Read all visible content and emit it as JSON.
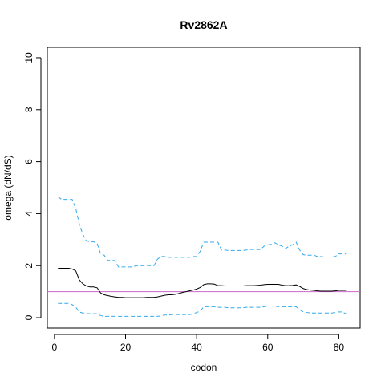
{
  "chart_data": {
    "type": "line",
    "title": "Rv2862A",
    "xlabel": "codon",
    "ylabel": "omega (dN/dS)",
    "xlim": [
      -2,
      86
    ],
    "ylim": [
      -0.4,
      10.4
    ],
    "xticks": [
      0,
      20,
      40,
      60,
      80
    ],
    "yticks": [
      0,
      2,
      4,
      6,
      8,
      10
    ],
    "reference_line": {
      "y": 1,
      "color": "#cc66cc"
    },
    "grid": false,
    "series": [
      {
        "role": "mean",
        "color": "#000000",
        "dash": "solid",
        "x": [
          1,
          2,
          3,
          4,
          5,
          6,
          7,
          8,
          9,
          10,
          11,
          12,
          13,
          14,
          15,
          16,
          17,
          18,
          19,
          20,
          21,
          22,
          23,
          24,
          25,
          26,
          27,
          28,
          29,
          30,
          31,
          32,
          33,
          34,
          35,
          36,
          37,
          38,
          39,
          40,
          41,
          42,
          43,
          44,
          45,
          46,
          47,
          48,
          49,
          50,
          51,
          52,
          53,
          54,
          55,
          56,
          57,
          58,
          59,
          60,
          61,
          62,
          63,
          64,
          65,
          66,
          67,
          68,
          69,
          70,
          71,
          72,
          73,
          74,
          75,
          76,
          77,
          78,
          79,
          80,
          81,
          82
        ],
        "values": [
          1.9,
          1.9,
          1.9,
          1.9,
          1.87,
          1.8,
          1.45,
          1.3,
          1.22,
          1.18,
          1.18,
          1.15,
          0.95,
          0.88,
          0.85,
          0.82,
          0.8,
          0.78,
          0.78,
          0.77,
          0.77,
          0.77,
          0.77,
          0.77,
          0.77,
          0.78,
          0.78,
          0.78,
          0.8,
          0.83,
          0.86,
          0.88,
          0.88,
          0.9,
          0.93,
          0.97,
          1.0,
          1.03,
          1.06,
          1.1,
          1.16,
          1.27,
          1.3,
          1.3,
          1.29,
          1.23,
          1.23,
          1.22,
          1.22,
          1.22,
          1.22,
          1.22,
          1.22,
          1.23,
          1.23,
          1.23,
          1.24,
          1.25,
          1.27,
          1.28,
          1.28,
          1.28,
          1.28,
          1.25,
          1.23,
          1.23,
          1.24,
          1.26,
          1.2,
          1.12,
          1.08,
          1.06,
          1.05,
          1.03,
          1.02,
          1.02,
          1.02,
          1.02,
          1.03,
          1.05,
          1.05,
          1.05
        ]
      },
      {
        "role": "upper",
        "color": "#33aaee",
        "dash": "dashed",
        "x": [
          1,
          2,
          3,
          4,
          5,
          6,
          7,
          8,
          9,
          10,
          11,
          12,
          13,
          14,
          15,
          16,
          17,
          18,
          19,
          20,
          21,
          22,
          23,
          24,
          25,
          26,
          27,
          28,
          29,
          30,
          31,
          32,
          33,
          34,
          35,
          36,
          37,
          38,
          39,
          40,
          41,
          42,
          43,
          44,
          45,
          46,
          47,
          48,
          49,
          50,
          51,
          52,
          53,
          54,
          55,
          56,
          57,
          58,
          59,
          60,
          61,
          62,
          63,
          64,
          65,
          66,
          67,
          68,
          69,
          70,
          71,
          72,
          73,
          74,
          75,
          76,
          77,
          78,
          79,
          80,
          81,
          82
        ],
        "values": [
          4.65,
          4.55,
          4.55,
          4.55,
          4.55,
          4.2,
          3.6,
          3.2,
          2.95,
          2.92,
          2.92,
          2.85,
          2.45,
          2.4,
          2.2,
          2.2,
          2.2,
          1.95,
          1.95,
          1.95,
          1.95,
          1.95,
          2.0,
          2.0,
          2.0,
          2.0,
          2.0,
          2.0,
          2.25,
          2.35,
          2.35,
          2.32,
          2.32,
          2.32,
          2.32,
          2.32,
          2.32,
          2.32,
          2.35,
          2.35,
          2.55,
          2.9,
          2.9,
          2.9,
          2.9,
          2.9,
          2.6,
          2.6,
          2.58,
          2.58,
          2.58,
          2.58,
          2.58,
          2.6,
          2.62,
          2.62,
          2.62,
          2.62,
          2.75,
          2.8,
          2.82,
          2.88,
          2.8,
          2.75,
          2.65,
          2.75,
          2.8,
          2.9,
          2.6,
          2.42,
          2.4,
          2.4,
          2.4,
          2.35,
          2.35,
          2.33,
          2.33,
          2.33,
          2.35,
          2.45,
          2.45,
          2.45
        ]
      },
      {
        "role": "lower",
        "color": "#33aaee",
        "dash": "dashed",
        "x": [
          1,
          2,
          3,
          4,
          5,
          6,
          7,
          8,
          9,
          10,
          11,
          12,
          13,
          14,
          15,
          16,
          17,
          18,
          19,
          20,
          21,
          22,
          23,
          24,
          25,
          26,
          27,
          28,
          29,
          30,
          31,
          32,
          33,
          34,
          35,
          36,
          37,
          38,
          39,
          40,
          41,
          42,
          43,
          44,
          45,
          46,
          47,
          48,
          49,
          50,
          51,
          52,
          53,
          54,
          55,
          56,
          57,
          58,
          59,
          60,
          61,
          62,
          63,
          64,
          65,
          66,
          67,
          68,
          69,
          70,
          71,
          72,
          73,
          74,
          75,
          76,
          77,
          78,
          79,
          80,
          81,
          82
        ],
        "values": [
          0.55,
          0.55,
          0.55,
          0.55,
          0.5,
          0.4,
          0.22,
          0.18,
          0.16,
          0.15,
          0.15,
          0.15,
          0.08,
          0.05,
          0.05,
          0.05,
          0.05,
          0.05,
          0.05,
          0.05,
          0.05,
          0.05,
          0.05,
          0.05,
          0.05,
          0.05,
          0.05,
          0.05,
          0.05,
          0.07,
          0.1,
          0.1,
          0.12,
          0.12,
          0.12,
          0.12,
          0.12,
          0.12,
          0.14,
          0.2,
          0.25,
          0.42,
          0.42,
          0.42,
          0.42,
          0.4,
          0.4,
          0.4,
          0.38,
          0.38,
          0.38,
          0.38,
          0.38,
          0.4,
          0.4,
          0.4,
          0.4,
          0.4,
          0.42,
          0.45,
          0.45,
          0.45,
          0.42,
          0.42,
          0.42,
          0.42,
          0.42,
          0.42,
          0.3,
          0.22,
          0.2,
          0.18,
          0.18,
          0.18,
          0.18,
          0.18,
          0.18,
          0.18,
          0.2,
          0.22,
          0.22,
          0.15
        ]
      }
    ]
  }
}
